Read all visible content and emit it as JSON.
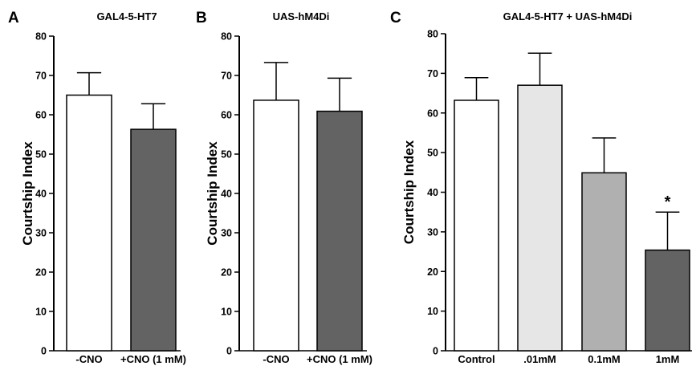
{
  "chart_data": [
    {
      "type": "bar",
      "panel_label": "A",
      "title": "GAL4-5-HT7",
      "ylabel": "Courtship Index",
      "ylim": [
        0,
        80
      ],
      "yticks": [
        0,
        10,
        20,
        30,
        40,
        50,
        60,
        70,
        80
      ],
      "categories": [
        "-CNO",
        "+CNO (1 mM)"
      ],
      "values": [
        65,
        56.3
      ],
      "errors": [
        5.7,
        6.5
      ],
      "colors": [
        "#ffffff",
        "#636363"
      ],
      "annotations": [
        "",
        ""
      ]
    },
    {
      "type": "bar",
      "panel_label": "B",
      "title": "UAS-hM4Di",
      "ylabel": "Courtship Index",
      "ylim": [
        0,
        80
      ],
      "yticks": [
        0,
        10,
        20,
        30,
        40,
        50,
        60,
        70,
        80
      ],
      "categories": [
        "-CNO",
        "+CNO (1 mM)"
      ],
      "values": [
        63.7,
        60.9
      ],
      "errors": [
        9.6,
        8.4
      ],
      "colors": [
        "#ffffff",
        "#636363"
      ],
      "annotations": [
        "",
        ""
      ]
    },
    {
      "type": "bar",
      "panel_label": "C",
      "title": "GAL4-5-HT7  +  UAS-hM4Di",
      "ylabel": "Courtship Index",
      "ylim": [
        0,
        80
      ],
      "yticks": [
        0,
        10,
        20,
        30,
        40,
        50,
        60,
        70,
        80
      ],
      "categories": [
        "Control",
        ".01mM",
        "0.1mM",
        "1mM"
      ],
      "values": [
        63.2,
        67,
        44.9,
        25.4
      ],
      "errors": [
        5.7,
        8.1,
        8.8,
        9.6
      ],
      "colors": [
        "#ffffff",
        "#e6e6e6",
        "#b0b0b0",
        "#636363"
      ],
      "annotations": [
        "",
        "",
        "",
        "*"
      ]
    }
  ]
}
